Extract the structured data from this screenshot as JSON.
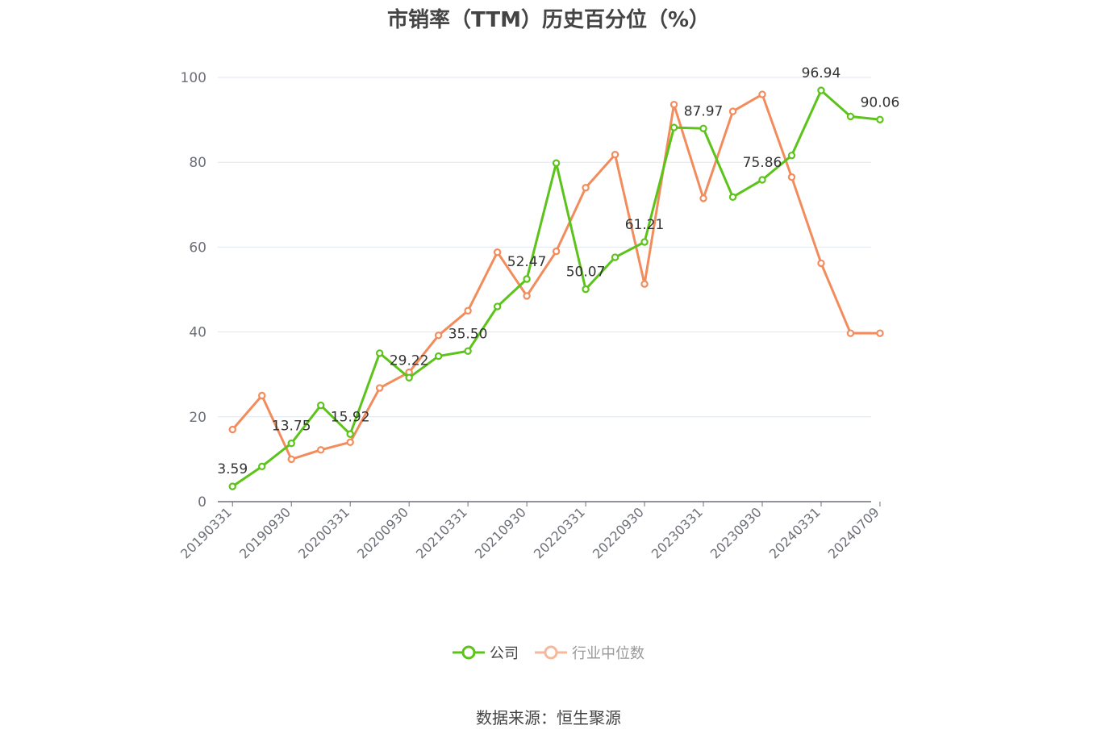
{
  "title": "市销率（TTM）历史百分位（%）",
  "source": "数据来源：恒生聚源",
  "legend": [
    "公司",
    "行业中位数"
  ],
  "colors": {
    "company": "#5cc31a",
    "industry": "#f28c5c",
    "grid": "#e0e6f1",
    "axis": "#6e7079"
  },
  "chart_data": {
    "type": "line",
    "title": "市销率（TTM）历史百分位（%）",
    "ylim": [
      0,
      100
    ],
    "yticks": [
      0,
      20,
      40,
      60,
      80,
      100
    ],
    "x": [
      "20190331",
      "20190630",
      "20190930",
      "20191231",
      "20200331",
      "20200630",
      "20200930",
      "20201231",
      "20210331",
      "20210630",
      "20210930",
      "20211231",
      "20220331",
      "20220630",
      "20220930",
      "20221231",
      "20230331",
      "20230630",
      "20230930",
      "20231231",
      "20240331",
      "20240630",
      "20240709"
    ],
    "xtick_labels": [
      "20190331",
      "20190930",
      "20200331",
      "20200930",
      "20210331",
      "20210930",
      "20220331",
      "20220930",
      "20230331",
      "20230930",
      "20240331",
      "20240709"
    ],
    "series": [
      {
        "name": "公司",
        "values": [
          3.59,
          8.3,
          13.75,
          22.7,
          15.92,
          35.0,
          29.22,
          34.3,
          35.5,
          46.0,
          52.47,
          79.8,
          50.07,
          57.6,
          61.21,
          88.2,
          87.97,
          71.8,
          75.86,
          81.6,
          96.94,
          90.8,
          90.06
        ],
        "labels": [
          "3.59",
          "",
          "13.75",
          "",
          "15.92",
          "",
          "29.22",
          "",
          "35.50",
          "",
          "52.47",
          "",
          "50.07",
          "",
          "61.21",
          "",
          "87.97",
          "",
          "75.86",
          "",
          "96.94",
          "",
          "90.06"
        ]
      },
      {
        "name": "行业中位数",
        "values": [
          17.0,
          25.0,
          10.0,
          12.2,
          14.0,
          26.8,
          30.5,
          39.2,
          45.0,
          58.8,
          48.5,
          59.0,
          74.0,
          81.8,
          51.3,
          93.6,
          71.5,
          92.0,
          96.0,
          76.5,
          56.2,
          39.7,
          39.7
        ]
      }
    ]
  }
}
